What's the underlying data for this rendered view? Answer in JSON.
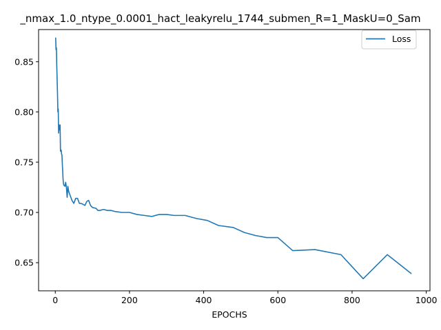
{
  "chart_data": {
    "type": "line",
    "title": "_nmax_1.0_ntype_0.0001_hact_leakyrelu_1744_submen_R=1_MaskU=0_Sam",
    "xlabel": "EPOCHS",
    "ylabel": "",
    "xlim": [
      -45,
      1010
    ],
    "ylim": [
      0.622,
      0.882
    ],
    "xticks": [
      0,
      200,
      400,
      600,
      800,
      1000
    ],
    "yticks": [
      0.65,
      0.7,
      0.75,
      0.8,
      0.85
    ],
    "xtick_labels": [
      "0",
      "200",
      "400",
      "600",
      "800",
      "1000"
    ],
    "ytick_labels": [
      "0.65",
      "0.70",
      "0.75",
      "0.80",
      "0.85"
    ],
    "legend": {
      "position": "top-right",
      "entries": [
        "Loss"
      ]
    },
    "series": [
      {
        "name": "Loss",
        "color": "#1f77b4",
        "x": [
          1,
          2,
          3,
          4,
          5,
          6,
          7,
          8,
          9,
          10,
          11,
          12,
          13,
          14,
          15,
          16,
          17,
          18,
          19,
          20,
          21,
          22,
          23,
          24,
          25,
          26,
          28,
          30,
          32,
          34,
          36,
          40,
          45,
          50,
          55,
          60,
          65,
          70,
          80,
          85,
          90,
          95,
          100,
          110,
          115,
          120,
          130,
          140,
          150,
          160,
          180,
          190,
          200,
          220,
          240,
          260,
          280,
          290,
          300,
          320,
          350,
          380,
          410,
          440,
          480,
          510,
          540,
          570,
          600,
          640,
          700,
          770,
          830,
          895,
          960
        ],
        "y": [
          0.874,
          0.862,
          0.864,
          0.846,
          0.832,
          0.818,
          0.8,
          0.803,
          0.779,
          0.787,
          0.785,
          0.782,
          0.787,
          0.761,
          0.761,
          0.762,
          0.758,
          0.757,
          0.748,
          0.741,
          0.733,
          0.729,
          0.727,
          0.727,
          0.727,
          0.726,
          0.73,
          0.725,
          0.715,
          0.726,
          0.721,
          0.717,
          0.712,
          0.709,
          0.714,
          0.714,
          0.709,
          0.709,
          0.707,
          0.711,
          0.712,
          0.707,
          0.705,
          0.704,
          0.702,
          0.702,
          0.703,
          0.702,
          0.702,
          0.701,
          0.7,
          0.7,
          0.7,
          0.698,
          0.697,
          0.696,
          0.698,
          0.698,
          0.698,
          0.697,
          0.697,
          0.694,
          0.692,
          0.687,
          0.685,
          0.68,
          0.677,
          0.675,
          0.675,
          0.662,
          0.663,
          0.658,
          0.634,
          0.658,
          0.639
        ]
      }
    ]
  }
}
